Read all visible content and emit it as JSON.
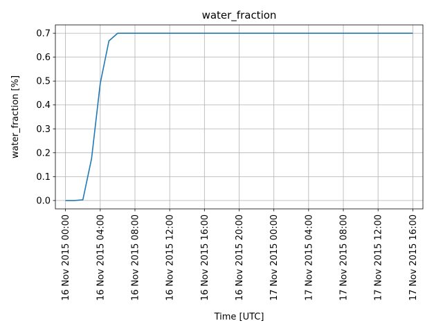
{
  "chart_data": {
    "type": "line",
    "title": "water_fraction",
    "xlabel": "Time  [UTC]",
    "ylabel": "water_fraction  [%]",
    "x_tick_labels": [
      "16 Nov 2015 00:00",
      "16 Nov 2015 04:00",
      "16 Nov 2015 08:00",
      "16 Nov 2015 12:00",
      "16 Nov 2015 16:00",
      "16 Nov 2015 20:00",
      "17 Nov 2015 00:00",
      "17 Nov 2015 04:00",
      "17 Nov 2015 08:00",
      "17 Nov 2015 12:00",
      "17 Nov 2015 16:00"
    ],
    "y_tick_labels": [
      "0.0",
      "0.1",
      "0.2",
      "0.3",
      "0.4",
      "0.5",
      "0.6",
      "0.7"
    ],
    "xlim": [
      "2015-11-15 22:50",
      "2015-11-17 17:10"
    ],
    "ylim": [
      -0.035,
      0.735
    ],
    "grid": true,
    "color": "#1f77b4",
    "series": [
      {
        "x": [
          "2015-11-16 00:00",
          "2015-11-16 01:00",
          "2015-11-16 02:00",
          "2015-11-16 03:00",
          "2015-11-16 04:00",
          "2015-11-16 05:00",
          "2015-11-16 06:00",
          "2015-11-16 07:00",
          "2015-11-16 08:00",
          "2015-11-16 12:00",
          "2015-11-16 16:00",
          "2015-11-16 20:00",
          "2015-11-17 00:00",
          "2015-11-17 04:00",
          "2015-11-17 08:00",
          "2015-11-17 12:00",
          "2015-11-17 16:00"
        ],
        "y": [
          0.0,
          0.0,
          0.003,
          0.175,
          0.49,
          0.668,
          0.7,
          0.7,
          0.7,
          0.7,
          0.7,
          0.7,
          0.7,
          0.7,
          0.7,
          0.7,
          0.7
        ]
      }
    ]
  }
}
